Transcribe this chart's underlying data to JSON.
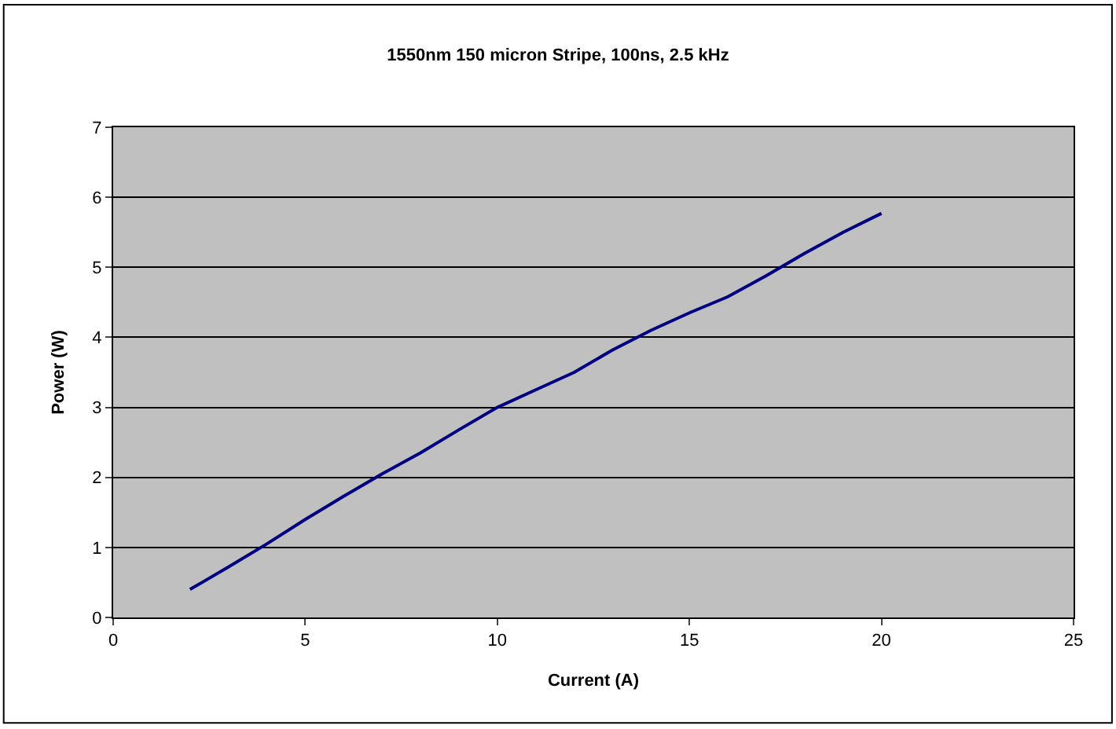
{
  "chart_data": {
    "type": "line",
    "title": "1550nm 150 micron Stripe, 100ns, 2.5 kHz",
    "xlabel": "Current (A)",
    "ylabel": "Power (W)",
    "x": [
      2,
      3,
      4,
      5,
      6,
      7,
      8,
      9,
      10,
      11,
      12,
      13,
      14,
      15,
      16,
      17,
      18,
      19,
      20
    ],
    "series": [
      {
        "color": "#000080",
        "values": [
          0.4,
          0.72,
          1.05,
          1.4,
          1.73,
          2.05,
          2.35,
          2.68,
          3.0,
          3.25,
          3.5,
          3.82,
          4.1,
          4.35,
          4.58,
          4.88,
          5.2,
          5.5,
          5.77
        ]
      }
    ],
    "xlim": [
      0,
      25
    ],
    "xticks": [
      0,
      5,
      10,
      15,
      20,
      25
    ],
    "ylim": [
      0,
      7
    ],
    "yticks": [
      0,
      1,
      2,
      3,
      4,
      5,
      6,
      7
    ],
    "grid": "y",
    "marker": "none",
    "line_style": "solid"
  }
}
